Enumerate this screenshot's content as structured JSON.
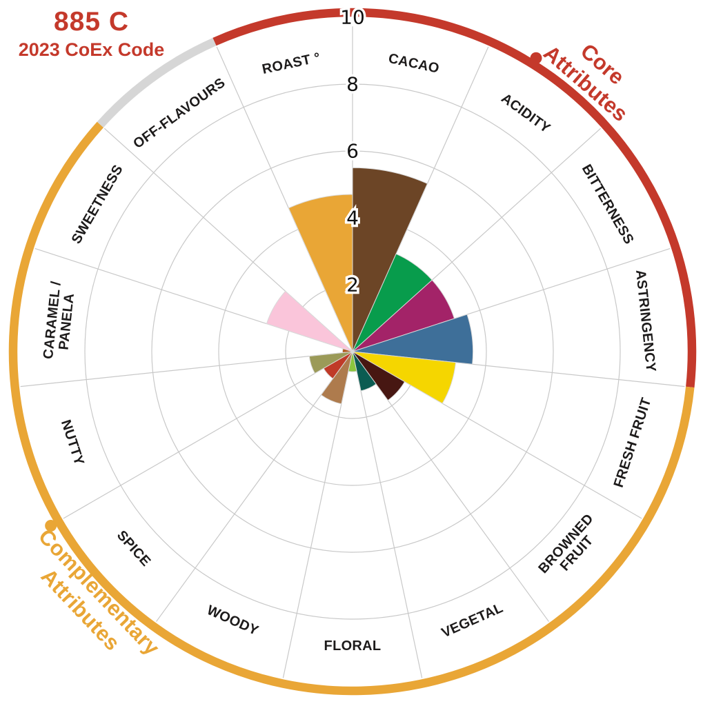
{
  "title": {
    "code": "885 C",
    "subtitle": "2023 CoEx Code",
    "color": "#C4392B"
  },
  "chart_data": {
    "type": "polar_bar",
    "title": "885 C — 2023 CoEx Code cocoa flavour profile",
    "r_ticks": [
      2,
      4,
      6,
      8,
      10
    ],
    "r_max": 10,
    "grid": true,
    "categories": [
      "CACAO",
      "ACIDITY",
      "BITTERNESS",
      "ASTRINGENCY",
      "FRESH FRUIT",
      "BROWNED\nFRUIT",
      "VEGETAL",
      "FLORAL",
      "WOODY",
      "SPICE",
      "NUTTY",
      "CARAMEL /\nPANELA",
      "SWEETNESS",
      "OFF-FLAVOURS",
      "ROAST °"
    ],
    "values": [
      5.5,
      3.2,
      3.2,
      3.6,
      3.1,
      1.8,
      1.2,
      0.6,
      1.6,
      1.0,
      1.3,
      0.3,
      2.7,
      0,
      4.7
    ],
    "colors": [
      "#6C4526",
      "#089C4C",
      "#A32368",
      "#3E6F99",
      "#F5D600",
      "#471712",
      "#0B5C52",
      "#8CC63E",
      "#AE7B4D",
      "#C03A28",
      "#9B9A58",
      "#B35C22",
      "#FAC5DA",
      null,
      "#E9A636"
    ],
    "groups": [
      {
        "name": "core-attributes",
        "label": "Core\nAttributes",
        "color": "#C4392B",
        "start_deg": -24,
        "end_deg": 96,
        "dot_deg": 32,
        "dot_r": 502,
        "label_deg": 41,
        "label_r": 534
      },
      {
        "name": "complementary-attributes",
        "label": "Complementary\nAttributes",
        "color": "#E9A636",
        "start_deg": 96,
        "end_deg": 312,
        "dot_deg": 240,
        "dot_r": 505,
        "label_deg": 226.5,
        "label_r": 525
      },
      {
        "name": "off-flavours-segment",
        "label": "",
        "color": "#D6D6D6",
        "start_deg": 312,
        "end_deg": 336
      }
    ]
  }
}
